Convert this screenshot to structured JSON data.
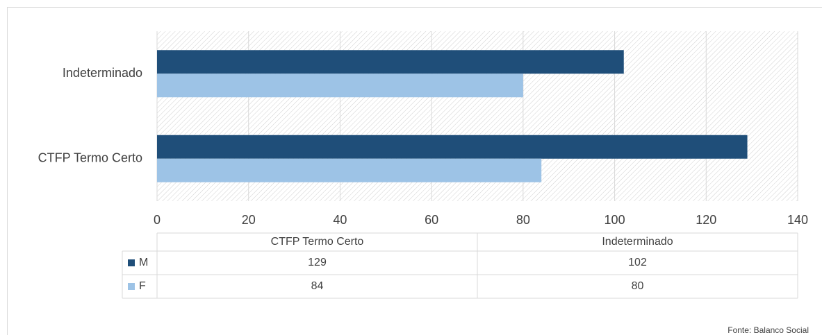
{
  "chart_data": {
    "type": "bar",
    "orientation": "horizontal",
    "categories": [
      "CTFP Termo Certo",
      "Indeterminado"
    ],
    "series": [
      {
        "name": "M",
        "color": "#1f4e79",
        "values": [
          129,
          102
        ]
      },
      {
        "name": "F",
        "color": "#9dc3e6",
        "values": [
          84,
          80
        ]
      }
    ],
    "xlim": [
      0,
      140
    ],
    "xticks": [
      0,
      20,
      40,
      60,
      80,
      100,
      120,
      140
    ],
    "grid": true,
    "source": "Fonte: Balanco Social"
  }
}
